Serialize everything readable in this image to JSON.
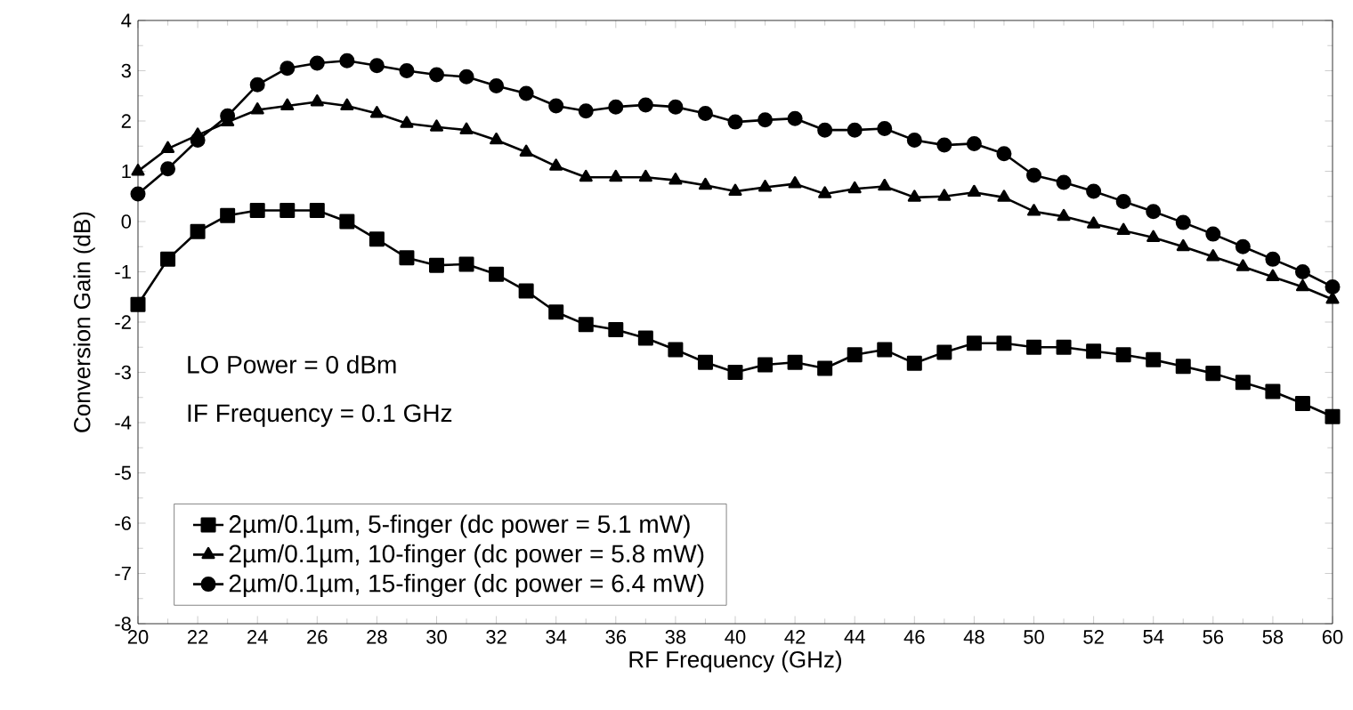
{
  "chart_data": {
    "type": "line",
    "xlabel": "RF Frequency (GHz)",
    "ylabel": "Conversion Gain (dB)",
    "x": [
      20,
      21,
      22,
      23,
      24,
      25,
      26,
      27,
      28,
      29,
      30,
      31,
      32,
      33,
      34,
      35,
      36,
      37,
      38,
      39,
      40,
      41,
      42,
      43,
      44,
      45,
      46,
      47,
      48,
      49,
      50,
      51,
      52,
      53,
      54,
      55,
      56,
      57,
      58,
      59,
      60
    ],
    "series": [
      {
        "name": "2µm/0.1µm, 5-finger (dc power = 5.1 mW)",
        "color": "#000000",
        "marker": "square",
        "values": [
          -1.65,
          -0.75,
          -0.2,
          0.12,
          0.22,
          0.22,
          0.22,
          0.0,
          -0.35,
          -0.72,
          -0.87,
          -0.85,
          -1.05,
          -1.38,
          -1.8,
          -2.05,
          -2.15,
          -2.32,
          -2.55,
          -2.8,
          -3.0,
          -2.85,
          -2.8,
          -2.92,
          -2.65,
          -2.55,
          -2.82,
          -2.6,
          -2.42,
          -2.42,
          -2.5,
          -2.5,
          -2.58,
          -2.65,
          -2.75,
          -2.88,
          -3.02,
          -3.2,
          -3.38,
          -3.62,
          -3.88
        ]
      },
      {
        "name": "2µm/0.1µm, 10-finger (dc power = 5.8 mW)",
        "color": "#000000",
        "marker": "triangle",
        "values": [
          1.0,
          1.45,
          1.72,
          1.98,
          2.22,
          2.3,
          2.38,
          2.3,
          2.15,
          1.95,
          1.88,
          1.82,
          1.62,
          1.38,
          1.1,
          0.88,
          0.88,
          0.88,
          0.82,
          0.72,
          0.6,
          0.68,
          0.75,
          0.55,
          0.65,
          0.7,
          0.48,
          0.5,
          0.58,
          0.48,
          0.2,
          0.1,
          -0.05,
          -0.18,
          -0.32,
          -0.5,
          -0.7,
          -0.9,
          -1.1,
          -1.3,
          -1.55
        ]
      },
      {
        "name": "2µm/0.1µm, 15-finger (dc power = 6.4 mW)",
        "color": "#000000",
        "marker": "circle",
        "values": [
          0.55,
          1.05,
          1.62,
          2.1,
          2.72,
          3.05,
          3.15,
          3.2,
          3.1,
          3.0,
          2.92,
          2.88,
          2.7,
          2.55,
          2.3,
          2.2,
          2.28,
          2.32,
          2.28,
          2.15,
          1.98,
          2.02,
          2.05,
          1.82,
          1.82,
          1.85,
          1.62,
          1.52,
          1.55,
          1.35,
          0.92,
          0.78,
          0.6,
          0.4,
          0.2,
          -0.02,
          -0.25,
          -0.5,
          -0.75,
          -1.0,
          -1.3
        ]
      }
    ],
    "xlim": [
      20,
      60
    ],
    "ylim": [
      -8,
      4
    ],
    "xticks": [
      20,
      22,
      24,
      26,
      28,
      30,
      32,
      34,
      36,
      38,
      40,
      42,
      44,
      46,
      48,
      50,
      52,
      54,
      56,
      58,
      60
    ],
    "yticks": [
      -8,
      -7,
      -6,
      -5,
      -4,
      -3,
      -2,
      -1,
      0,
      1,
      2,
      3,
      4
    ],
    "annotations": [
      "LO Power = 0 dBm",
      "IF Frequency = 0.1 GHz"
    ],
    "legend": "bottom left",
    "line_style": "solid",
    "grid": false
  }
}
